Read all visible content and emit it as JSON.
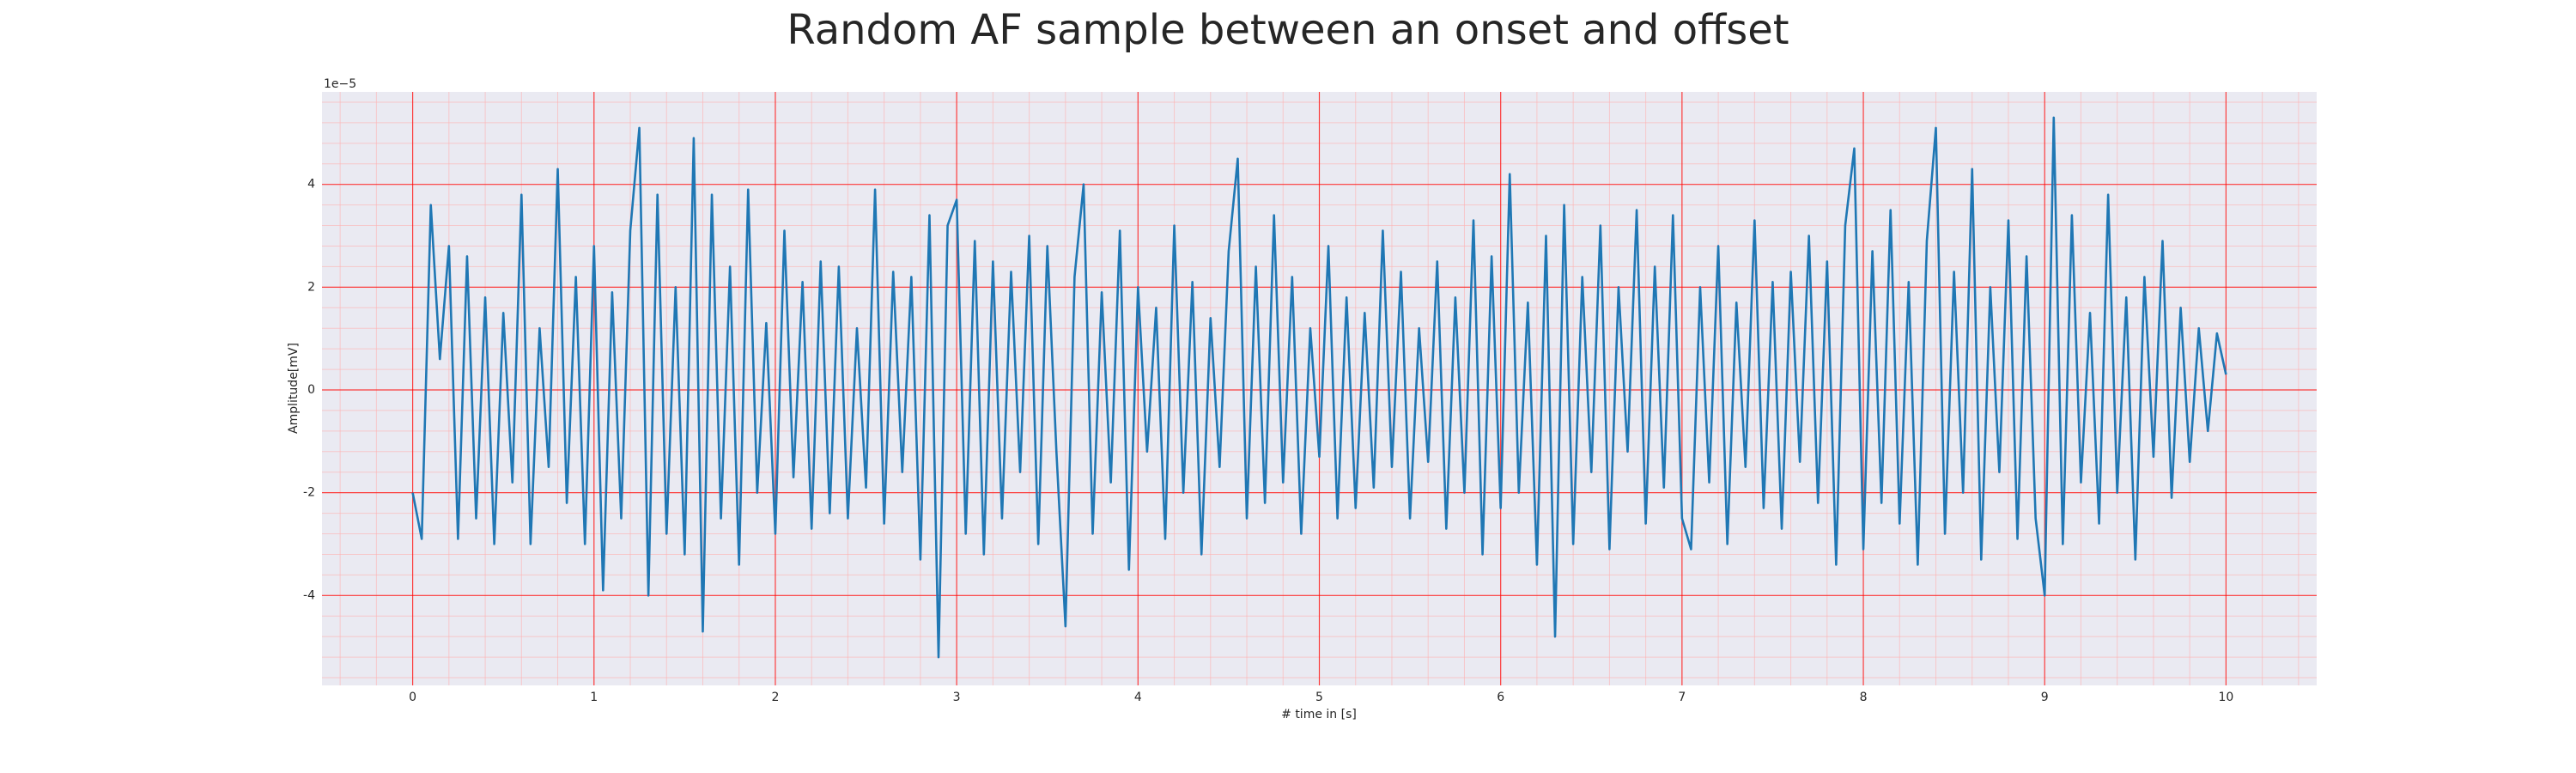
{
  "chart_data": {
    "type": "line",
    "title": "Random AF sample between an onset and offset",
    "xlabel": "# time in [s]",
    "ylabel": "Amplitude[mV]",
    "y_offset_label": "1e−5",
    "color": "#1f77b4",
    "xlim": [
      -0.5,
      10.5
    ],
    "ylim": [
      -5.75,
      5.8
    ],
    "xticks": [
      0,
      1,
      2,
      3,
      4,
      5,
      6,
      7,
      8,
      9,
      10
    ],
    "yticks": [
      -4,
      -2,
      0,
      2,
      4
    ],
    "grid": true,
    "grid_color": "#ff0000",
    "minor_grid": {
      "x_step": 0.2,
      "y_step": 0.4,
      "color": "#ffb0b0"
    },
    "background": "#eaeaf2",
    "x": [
      0.0,
      0.05,
      0.1,
      0.15,
      0.2,
      0.25,
      0.3,
      0.35,
      0.4,
      0.45,
      0.5,
      0.55,
      0.6,
      0.65,
      0.7,
      0.75,
      0.8,
      0.85,
      0.9,
      0.95,
      1.0,
      1.05,
      1.1,
      1.15,
      1.2,
      1.25,
      1.3,
      1.35,
      1.4,
      1.45,
      1.5,
      1.55,
      1.6,
      1.65,
      1.7,
      1.75,
      1.8,
      1.85,
      1.9,
      1.95,
      2.0,
      2.05,
      2.1,
      2.15,
      2.2,
      2.25,
      2.3,
      2.35,
      2.4,
      2.45,
      2.5,
      2.55,
      2.6,
      2.65,
      2.7,
      2.75,
      2.8,
      2.85,
      2.9,
      2.95,
      3.0,
      3.05,
      3.1,
      3.15,
      3.2,
      3.25,
      3.3,
      3.35,
      3.4,
      3.45,
      3.5,
      3.55,
      3.6,
      3.65,
      3.7,
      3.75,
      3.8,
      3.85,
      3.9,
      3.95,
      4.0,
      4.05,
      4.1,
      4.15,
      4.2,
      4.25,
      4.3,
      4.35,
      4.4,
      4.45,
      4.5,
      4.55,
      4.6,
      4.65,
      4.7,
      4.75,
      4.8,
      4.85,
      4.9,
      4.95,
      5.0,
      5.05,
      5.1,
      5.15,
      5.2,
      5.25,
      5.3,
      5.35,
      5.4,
      5.45,
      5.5,
      5.55,
      5.6,
      5.65,
      5.7,
      5.75,
      5.8,
      5.85,
      5.9,
      5.95,
      6.0,
      6.05,
      6.1,
      6.15,
      6.2,
      6.25,
      6.3,
      6.35,
      6.4,
      6.45,
      6.5,
      6.55,
      6.6,
      6.65,
      6.7,
      6.75,
      6.8,
      6.85,
      6.9,
      6.95,
      7.0,
      7.05,
      7.1,
      7.15,
      7.2,
      7.25,
      7.3,
      7.35,
      7.4,
      7.45,
      7.5,
      7.55,
      7.6,
      7.65,
      7.7,
      7.75,
      7.8,
      7.85,
      7.9,
      7.95,
      8.0,
      8.05,
      8.1,
      8.15,
      8.2,
      8.25,
      8.3,
      8.35,
      8.4,
      8.45,
      8.5,
      8.55,
      8.6,
      8.65,
      8.7,
      8.75,
      8.8,
      8.85,
      8.9,
      8.95,
      9.0,
      9.05,
      9.1,
      9.15,
      9.2,
      9.25,
      9.3,
      9.35,
      9.4,
      9.45,
      9.5,
      9.55,
      9.6,
      9.65,
      9.7,
      9.75,
      9.8,
      9.85,
      9.9,
      9.95,
      10.0
    ],
    "values": [
      -2.0,
      -2.9,
      3.6,
      0.6,
      2.8,
      -2.9,
      2.6,
      -2.5,
      1.8,
      -3.0,
      1.5,
      -1.8,
      3.8,
      -3.0,
      1.2,
      -1.5,
      4.3,
      -2.2,
      2.2,
      -3.0,
      2.8,
      -3.9,
      1.9,
      -2.5,
      3.1,
      5.1,
      -4.0,
      3.8,
      -2.8,
      2.0,
      -3.2,
      4.9,
      -4.7,
      3.8,
      -2.5,
      2.4,
      -3.4,
      3.9,
      -2.0,
      1.3,
      -2.8,
      3.1,
      -1.7,
      2.1,
      -2.7,
      2.5,
      -2.4,
      2.4,
      -2.5,
      1.2,
      -1.9,
      3.9,
      -2.6,
      2.3,
      -1.6,
      2.2,
      -3.3,
      3.4,
      -5.2,
      3.2,
      3.7,
      -2.8,
      2.9,
      -3.2,
      2.5,
      -2.5,
      2.3,
      -1.6,
      3.0,
      -3.0,
      2.8,
      -1.2,
      -4.6,
      2.2,
      4.0,
      -2.8,
      1.9,
      -1.8,
      3.1,
      -3.5,
      2.0,
      -1.2,
      1.6,
      -2.9,
      3.2,
      -2.0,
      2.1,
      -3.2,
      1.4,
      -1.5,
      2.7,
      4.5,
      -2.5,
      2.4,
      -2.2,
      3.4,
      -1.8,
      2.2,
      -2.8,
      1.2,
      -1.3,
      2.8,
      -2.5,
      1.8,
      -2.3,
      1.5,
      -1.9,
      3.1,
      -1.5,
      2.3,
      -2.5,
      1.2,
      -1.4,
      2.5,
      -2.7,
      1.8,
      -2.0,
      3.3,
      -3.2,
      2.6,
      -2.3,
      4.2,
      -2.0,
      1.7,
      -3.4,
      3.0,
      -4.8,
      3.6,
      -3.0,
      2.2,
      -1.6,
      3.2,
      -3.1,
      2.0,
      -1.2,
      3.5,
      -2.6,
      2.4,
      -1.9,
      3.4,
      -2.5,
      -3.1,
      2.0,
      -1.8,
      2.8,
      -3.0,
      1.7,
      -1.5,
      3.3,
      -2.3,
      2.1,
      -2.7,
      2.3,
      -1.4,
      3.0,
      -2.2,
      2.5,
      -3.4,
      3.2,
      4.7,
      -3.1,
      2.7,
      -2.2,
      3.5,
      -2.6,
      2.1,
      -3.4,
      2.9,
      5.1,
      -2.8,
      2.3,
      -2.0,
      4.3,
      -3.3,
      2.0,
      -1.6,
      3.3,
      -2.9,
      2.6,
      -2.5,
      -4.0,
      5.3,
      -3.0,
      3.4,
      -1.8,
      1.5,
      -2.6,
      3.8,
      -2.0,
      1.8,
      -3.3,
      2.2,
      -1.3,
      2.9,
      -2.1,
      1.6,
      -1.4,
      1.2,
      -0.8,
      1.1,
      0.3
    ]
  }
}
